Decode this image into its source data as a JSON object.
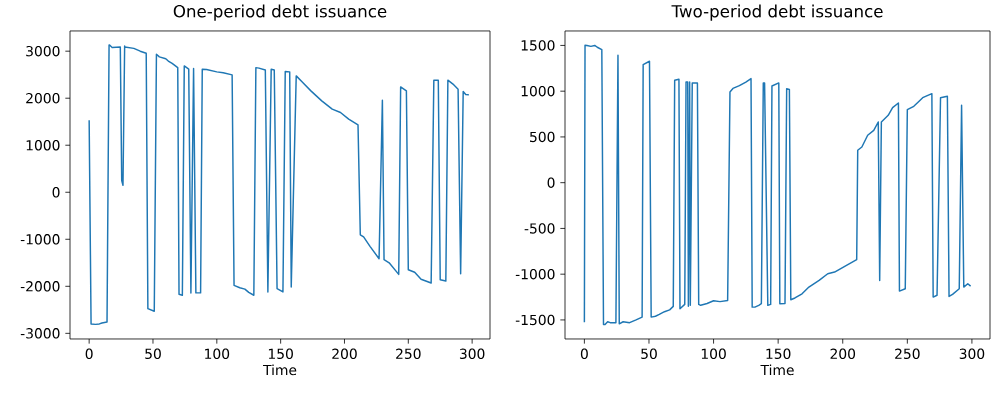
{
  "chart_data": [
    {
      "type": "line",
      "title": "One-period debt issuance",
      "xlabel": "Time",
      "color": "#1f77b4",
      "xlim": [
        -15,
        314
      ],
      "ylim": [
        -3120,
        3430
      ],
      "xticks": [
        0,
        50,
        100,
        150,
        200,
        250,
        300
      ],
      "yticks": [
        -3000,
        -2000,
        -1000,
        0,
        1000,
        2000,
        3000
      ],
      "x": [
        0,
        1.5,
        5,
        8,
        10,
        14,
        15.6,
        16,
        18,
        24.4,
        25.5,
        26.5,
        27.8,
        28,
        35,
        40,
        44.7,
        46,
        51,
        52.7,
        55,
        60,
        62,
        65,
        69.4,
        70.4,
        73,
        74.5,
        78,
        79.7,
        81.8,
        83.6,
        87.3,
        88.6,
        92,
        100,
        105,
        112,
        113.5,
        118,
        122,
        125,
        129,
        130.6,
        133,
        138,
        140,
        142.6,
        145,
        147.2,
        151.8,
        153.6,
        157.1,
        158.3,
        162.2,
        167.3,
        173.7,
        182.2,
        190.4,
        196.9,
        203.3,
        210.6,
        212.4,
        215,
        220,
        227.1,
        229.7,
        231,
        235,
        242.5,
        244,
        248.5,
        250,
        255,
        260,
        267.9,
        270,
        273.5,
        275,
        279.4,
        281,
        285,
        289,
        291,
        293,
        295,
        297.5
      ],
      "values": [
        1530,
        -2800,
        -2810,
        -2800,
        -2780,
        -2760,
        3130,
        3130,
        3080,
        3090,
        250,
        150,
        3110,
        3090,
        3060,
        3000,
        2955,
        -2475,
        -2530,
        2934,
        2880,
        2840,
        2790,
        2740,
        2650,
        -2170,
        -2190,
        2687,
        2620,
        -2142,
        2630,
        -2140,
        -2140,
        2616,
        2610,
        2560,
        2540,
        2496,
        -1980,
        -2030,
        -2060,
        -2130,
        -2190,
        2650,
        2640,
        2600,
        -2120,
        2616,
        2600,
        -2050,
        -2120,
        2566,
        2560,
        -2015,
        2475,
        2333,
        2156,
        1944,
        1767,
        1697,
        1555,
        1435,
        -905,
        -950,
        -1150,
        -1414,
        1958,
        -1435,
        -1500,
        -1746,
        2241,
        2156,
        -1647,
        -1700,
        -1850,
        -1930,
        2383,
        2380,
        -1860,
        -1888,
        2383,
        2300,
        2191,
        -1732,
        2142,
        2080,
        2071
      ]
    },
    {
      "type": "line",
      "title": "Two-period debt issuance",
      "xlabel": "Time",
      "color": "#1f77b4",
      "xlim": [
        -15,
        314
      ],
      "ylim": [
        -1708,
        1658
      ],
      "xticks": [
        0,
        50,
        100,
        150,
        200,
        250,
        300
      ],
      "yticks": [
        -1500,
        -1000,
        -500,
        0,
        500,
        1000,
        1500
      ],
      "x": [
        0,
        0.5,
        2,
        5,
        8,
        10,
        13.5,
        14.8,
        16,
        18,
        20,
        24.4,
        26,
        27,
        30,
        35,
        40,
        44.7,
        45.5,
        50.4,
        51.7,
        55,
        58,
        62,
        66,
        68.8,
        69.9,
        73.2,
        74,
        77.7,
        78.7,
        80,
        80.5,
        81.5,
        82,
        83.5,
        87.5,
        88.5,
        90,
        95,
        100,
        105,
        110.9,
        112.7,
        115,
        120,
        125,
        129,
        129.9,
        132,
        135,
        137,
        138.5,
        139.5,
        142,
        144.2,
        145.2,
        150.5,
        151.3,
        155.3,
        156.6,
        158.7,
        159.8,
        163,
        168.5,
        173.8,
        181.7,
        188.4,
        193.7,
        202.9,
        210.8,
        211.6,
        214.8,
        219.3,
        224,
        227.5,
        228.6,
        229.9,
        235.2,
        238.6,
        243.1,
        243.9,
        248.4,
        250,
        255,
        258.5,
        261.9,
        269,
        270,
        273,
        275.7,
        281,
        282.3,
        285,
        290.2,
        292,
        293.7,
        296.8,
        299
      ],
      "values": [
        -1524,
        1502,
        1500,
        1490,
        1500,
        1480,
        1454,
        -1549,
        -1550,
        -1520,
        -1530,
        -1530,
        1392,
        -1542,
        -1520,
        -1530,
        -1500,
        -1469,
        1290,
        1327,
        -1469,
        -1460,
        -1440,
        -1410,
        -1390,
        -1352,
        1119,
        1130,
        -1378,
        -1330,
        1100,
        1100,
        -1350,
        1100,
        -1340,
        1090,
        1090,
        -1330,
        -1340,
        -1320,
        -1290,
        -1300,
        -1287,
        991,
        1030,
        1060,
        1100,
        1137,
        -1360,
        -1360,
        -1340,
        -1323,
        1090,
        1090,
        -1341,
        -1330,
        1057,
        1090,
        -1323,
        -1320,
        1028,
        1020,
        -1279,
        -1260,
        -1214,
        -1141,
        -1068,
        -995,
        -977,
        -904,
        -842,
        354,
        390,
        518,
        572,
        663,
        -1068,
        663,
        736,
        820,
        871,
        -1185,
        -1159,
        798,
        835,
        882,
        929,
        973,
        -1250,
        -1230,
        929,
        944,
        -1243,
        -1220,
        -1159,
        846,
        -1141,
        -1104,
        -1130
      ]
    }
  ]
}
